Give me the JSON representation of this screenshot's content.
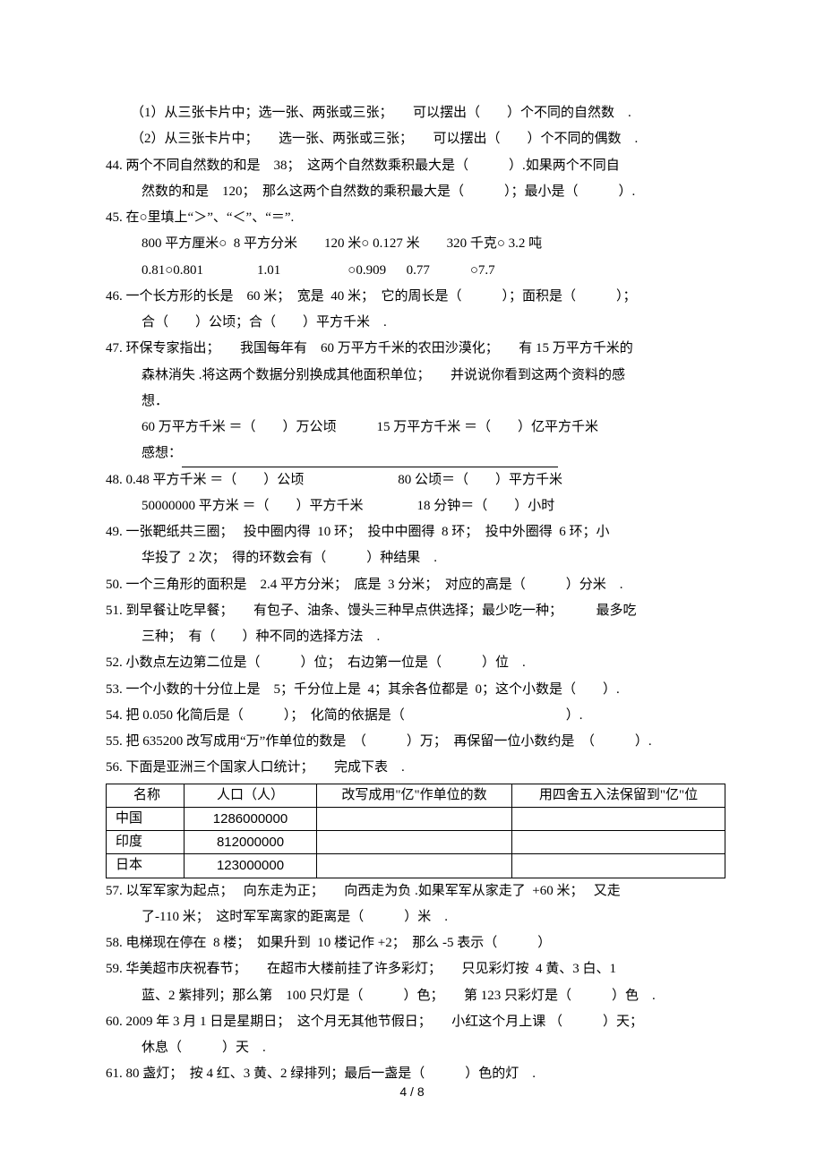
{
  "lines": {
    "l43a": "（1）从三张卡片中；选一张、两张或三张；　　可以摆出（　　）个不同的自然数　.",
    "l43b": "（2）从三张卡片中；　　选一张、两张或三张；　　可以摆出（　　）个不同的偶数　.",
    "l44a": "44. 两个不同自然数的和是　38；　这两个自然数乘积最大是（　　　）.如果两个不同自",
    "l44b": "然数的和是　120；　那么这两个自然数的乘积最大是（　　　）；最小是（　　　）.",
    "l45a": "45. 在○里填上“＞”、“＜”、“＝”.",
    "l45b": "800 平方厘米○  8 平方分米　　120 米○ 0.127 米　　320 千克○ 3.2 吨",
    "l45c": "0.81○0.801　　　　1.01　　　　　○0.909　  0.77　　　○7.7",
    "l46a": "46. 一个长方形的长是　60 米；　宽是  40 米；　它的周长是（　　　）；面积是（　　　）；",
    "l46b": "合（　　）公顷；合（　　）平方千米　.",
    "l47a": "47. 环保专家指出；　　我国每年有　60 万平方千米的农田沙漠化；　　有 15 万平方千米的",
    "l47b": "森林消失 .将这两个数据分别换成其他面积单位；　　并说说你看到这两个资料的感",
    "l47c": "想．",
    "l47d": "60 万平方千米 ＝（　　）万公顷　　　15 万平方千米 ＝（　　）亿平方千米",
    "l47e": "感想：",
    "l48a": "48. 0.48 平方千米 ＝（　　）公顷　　　　　　　80 公顷＝（　　）平方千米",
    "l48b": "50000000 平方米 ＝（　　）平方千米　　　　18 分钟＝（　　）小时",
    "l49a": "49. 一张靶纸共三圈；　 投中圈内得  10 环；　投中中圈得  8 环；　投中外圈得  6 环；小",
    "l49b": "华投了  2 次；　得的环数会有（　　　）种结果　.",
    "l50": "50. 一个三角形的面积是　2.4 平方分米；　底是  3 分米；　对应的高是（　　　）分米　.",
    "l51a": "51. 到早餐让吃早餐；　　有包子、油条、馒头三种早点供选择；最少吃一种；　　　最多吃",
    "l51b": "三种；　有（　　）种不同的选择方法　.",
    "l52": "52. 小数点左边第二位是（　　　）位；　右边第一位是（　　　）位　.",
    "l53": "53. 一个小数的十分位上是　5；千分位上是  4；其余各位都是  0；这个小数是（　　）.",
    "l54": "54. 把 0.050 化简后是（　　　）；　化简的依据是（　　　　　　　　　　　　）.",
    "l55": "55. 把 635200 改写成用“万”作单位的数是　（　　　）万；　再保留一位小数约是　（　　　）.",
    "l56": "56. 下面是亚洲三个国家人口统计；　　完成下表　.",
    "l57a": "57. 以军军家为起点；　 向东走为正；　　向西走为负 .如果军军从家走了  +60 米；　 又走",
    "l57b": "了-110 米；　这时军军离家的距离是（　　　）米　.",
    "l58": "58. 电梯现在停在  8 楼；　如果升到  10 楼记作 +2；　那么 -5 表示（　　　）",
    "l59a": "59. 华美超市庆祝春节；　　在超市大楼前挂了许多彩灯；　　只见彩灯按  4 黄、3 白、1",
    "l59b": "蓝、2 紫排列；那么第　100 只灯是（　　　）色；　　第 123 只彩灯是（　　　）色　.",
    "l60a": "60. 2009 年 3 月 1 日是星期日；　这个月无其他节假日；　　小红这个月上课 （　　　）天；",
    "l60b": "休息（　　　）天　.",
    "l61": "61. 80 盏灯；　按 4 红、3 黄、2 绿排列；最后一盏是（　　　）色的灯　."
  },
  "table": {
    "headers": {
      "name": "名称",
      "pop": "人口（人）",
      "rewrite": "改写成用\"亿\"作单位的数",
      "round": "用四舍五入法保留到\"亿\"位"
    },
    "rows": [
      {
        "name": "中国",
        "pop": "1286000000"
      },
      {
        "name": "印度",
        "pop": "812000000"
      },
      {
        "name": "日本",
        "pop": "123000000"
      }
    ]
  },
  "footer": "4  /  8"
}
